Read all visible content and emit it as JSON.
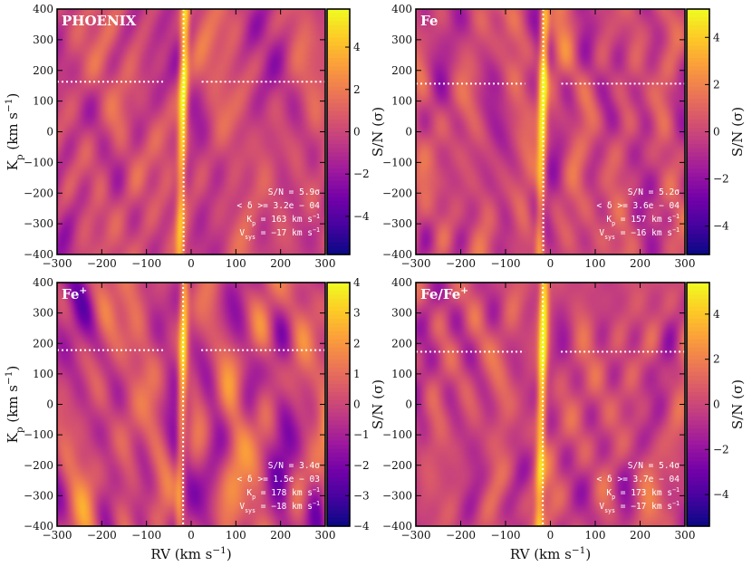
{
  "colormap": [
    "#0d0887",
    "#46039f",
    "#7201a8",
    "#9c179e",
    "#bd3786",
    "#d8576b",
    "#ed7953",
    "#fb9f3a",
    "#fdca26",
    "#f0f921"
  ],
  "chart_data": [
    {
      "type": "heatmap",
      "title": "PHOENIX",
      "xlabel": "",
      "ylabel": "Kp (km s−1)",
      "colorbar_label": "S/N (σ)",
      "xlim": [
        -300,
        300
      ],
      "ylim": [
        -400,
        400
      ],
      "clim": [
        -5.8,
        5.8
      ],
      "xticks": [
        "−300",
        "−200",
        "−100",
        "0",
        "100",
        "200",
        "300"
      ],
      "yticks": [
        "−400",
        "−300",
        "−200",
        "−100",
        "0",
        "100",
        "200",
        "300",
        "400"
      ],
      "cticks": [
        {
          "v": 4,
          "label": "4"
        },
        {
          "v": 2,
          "label": "2"
        },
        {
          "v": 0,
          "label": "0"
        },
        {
          "v": -2,
          "label": "−2"
        },
        {
          "v": -4,
          "label": "−4"
        }
      ],
      "peak": {
        "rv": -17,
        "kp": 163,
        "snr": 5.9
      },
      "annotations": [
        "S/N = 5.9σ",
        "< δ >= 3.2e − 04",
        "Kp = 163 km s−1",
        "Vsys = −17 km s−1"
      ]
    },
    {
      "type": "heatmap",
      "title": "Fe",
      "xlabel": "",
      "ylabel": "",
      "colorbar_label": "S/N (σ)",
      "xlim": [
        -300,
        300
      ],
      "ylim": [
        -400,
        400
      ],
      "clim": [
        -5.2,
        5.2
      ],
      "xticks": [
        "−300",
        "−200",
        "−100",
        "0",
        "100",
        "200",
        "300"
      ],
      "yticks": [
        "−400",
        "−300",
        "−200",
        "−100",
        "0",
        "100",
        "200",
        "300",
        "400"
      ],
      "cticks": [
        {
          "v": 4,
          "label": "4"
        },
        {
          "v": 2,
          "label": "2"
        },
        {
          "v": 0,
          "label": "0"
        },
        {
          "v": -2,
          "label": "−2"
        },
        {
          "v": -4,
          "label": "−4"
        }
      ],
      "peak": {
        "rv": -16,
        "kp": 157,
        "snr": 5.2
      },
      "annotations": [
        "S/N = 5.2σ",
        "< δ >= 3.6e − 04",
        "Kp = 157 km s−1",
        "Vsys = −16 km s−1"
      ]
    },
    {
      "type": "heatmap",
      "title": "Fe+",
      "xlabel": "RV (km s−1)",
      "ylabel": "Kp (km s−1)",
      "colorbar_label": "S/N (σ)",
      "xlim": [
        -300,
        300
      ],
      "ylim": [
        -400,
        400
      ],
      "clim": [
        -4,
        4
      ],
      "xticks": [
        "−300",
        "−200",
        "−100",
        "0",
        "100",
        "200",
        "300"
      ],
      "yticks": [
        "−400",
        "−300",
        "−200",
        "−100",
        "0",
        "100",
        "200",
        "300",
        "400"
      ],
      "cticks": [
        {
          "v": 4,
          "label": "4"
        },
        {
          "v": 3,
          "label": "3"
        },
        {
          "v": 2,
          "label": "2"
        },
        {
          "v": 1,
          "label": "1"
        },
        {
          "v": 0,
          "label": "0"
        },
        {
          "v": -1,
          "label": "−1"
        },
        {
          "v": -2,
          "label": "−2"
        },
        {
          "v": -3,
          "label": "−3"
        },
        {
          "v": -4,
          "label": "−4"
        }
      ],
      "peak": {
        "rv": -18,
        "kp": 178,
        "snr": 3.4
      },
      "annotations": [
        "S/N = 3.4σ",
        "< δ >= 1.5e − 03",
        "Kp = 178 km s−1",
        "Vsys = −18 km s−1"
      ]
    },
    {
      "type": "heatmap",
      "title": "Fe/Fe+",
      "xlabel": "RV (km s−1)",
      "ylabel": "",
      "colorbar_label": "S/N (σ)",
      "xlim": [
        -300,
        300
      ],
      "ylim": [
        -400,
        400
      ],
      "clim": [
        -5.4,
        5.4
      ],
      "xticks": [
        "−300",
        "−200",
        "−100",
        "0",
        "100",
        "200",
        "300"
      ],
      "yticks": [
        "−400",
        "−300",
        "−200",
        "−100",
        "0",
        "100",
        "200",
        "300",
        "400"
      ],
      "cticks": [
        {
          "v": 4,
          "label": "4"
        },
        {
          "v": 2,
          "label": "2"
        },
        {
          "v": 0,
          "label": "0"
        },
        {
          "v": -2,
          "label": "−2"
        },
        {
          "v": -4,
          "label": "−4"
        }
      ],
      "peak": {
        "rv": -17,
        "kp": 173,
        "snr": 5.4
      },
      "annotations": [
        "S/N = 5.4σ",
        "< δ >= 3.7e − 04",
        "Kp = 173 km s−1",
        "Vsys = −17 km s−1"
      ]
    }
  ]
}
